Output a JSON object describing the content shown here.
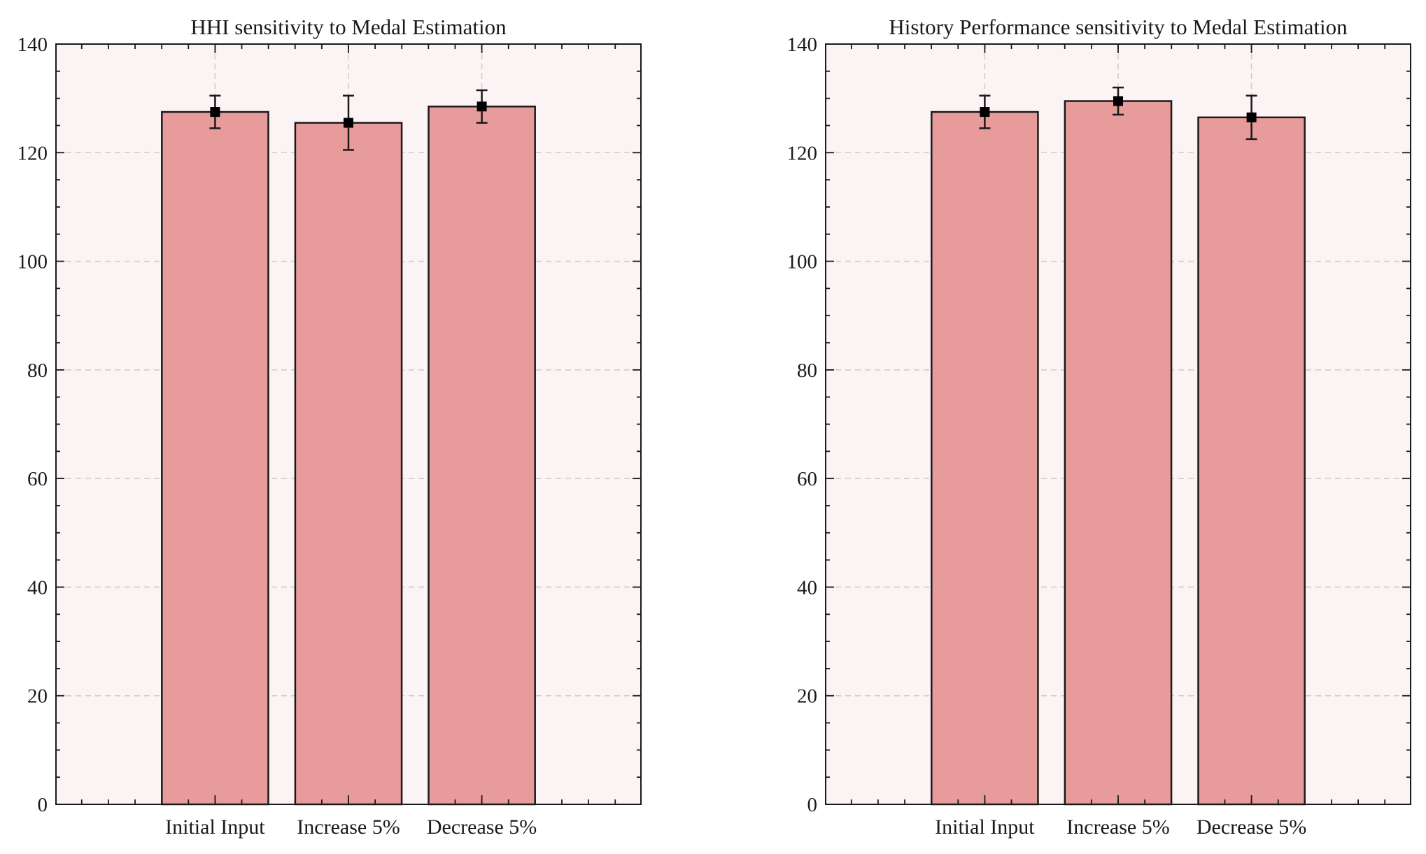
{
  "chart_data": [
    {
      "type": "bar",
      "title": "HHI sensitivity to Medal Estimation",
      "categories": [
        "Initial Input",
        "Increase 5%",
        "Decrease 5%"
      ],
      "values": [
        127.5,
        125.5,
        128.5
      ],
      "error_low": [
        124.5,
        120.5,
        125.5
      ],
      "error_high": [
        130.5,
        130.5,
        131.5
      ],
      "ylim": [
        0,
        140
      ],
      "yticks": [
        0,
        20,
        40,
        60,
        80,
        100,
        120,
        140
      ],
      "grid": true
    },
    {
      "type": "bar",
      "title": "History Performance sensitivity to Medal Estimation",
      "categories": [
        "Initial Input",
        "Increase 5%",
        "Decrease 5%"
      ],
      "values": [
        127.5,
        129.5,
        126.5
      ],
      "error_low": [
        124.5,
        127.0,
        122.5
      ],
      "error_high": [
        130.5,
        132.0,
        130.5
      ],
      "ylim": [
        0,
        140
      ],
      "yticks": [
        0,
        20,
        40,
        60,
        80,
        100,
        120,
        140
      ],
      "grid": true
    }
  ],
  "colors": {
    "bar_fill": "#e79b9b",
    "plot_bg": "#fbf3f4",
    "grid": "#cccccc",
    "edge": "#1a1a1a"
  }
}
